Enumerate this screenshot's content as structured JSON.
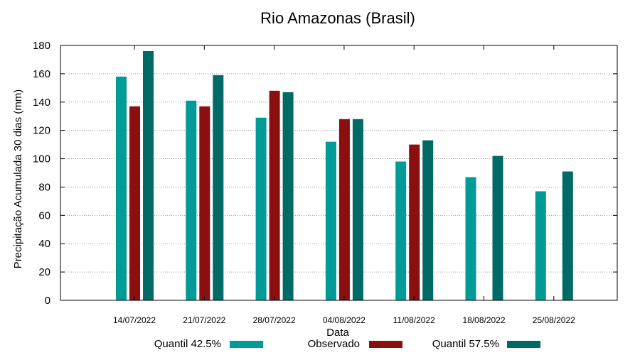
{
  "chart_data": {
    "type": "bar",
    "title": "Rio Amazonas (Brasil)",
    "xlabel": "Data",
    "ylabel": "Precipitação Acumulada 30 dias (mm)",
    "ylim": [
      0,
      180
    ],
    "yticks": [
      0,
      20,
      40,
      60,
      80,
      100,
      120,
      140,
      160,
      180
    ],
    "grid": true,
    "legend_position": "bottom",
    "categories": [
      "14/07/2022",
      "21/07/2022",
      "28/07/2022",
      "04/08/2022",
      "11/08/2022",
      "18/08/2022",
      "25/08/2022"
    ],
    "series": [
      {
        "name": "Quantil 42.5%",
        "color": "#009b96",
        "values": [
          158,
          141,
          129,
          112,
          98,
          87,
          77
        ]
      },
      {
        "name": "Observado",
        "color": "#8b0f0f",
        "values": [
          137,
          137,
          148,
          128,
          110,
          null,
          null
        ]
      },
      {
        "name": "Quantil 57.5%",
        "color": "#006a66",
        "values": [
          176,
          159,
          147,
          128,
          113,
          102,
          91
        ]
      }
    ]
  }
}
